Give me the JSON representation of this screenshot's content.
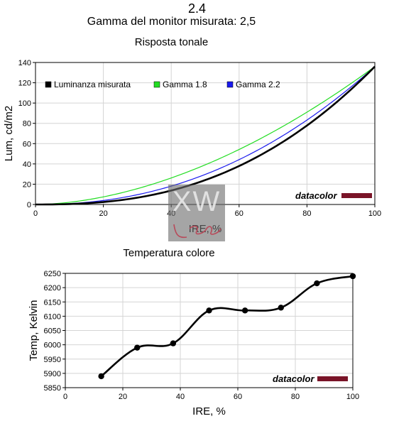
{
  "header": {
    "title": "2.4",
    "subtitle": "Gamma del monitor misurata: 2,5"
  },
  "watermark": {
    "logo_text": "XW"
  },
  "chart_data": [
    {
      "type": "line",
      "title": "Risposta tonale",
      "xlabel": "IRE, %",
      "ylabel": "Lum, cd/m2",
      "xlim": [
        0,
        100
      ],
      "ylim": [
        0,
        140
      ],
      "x_ticks": [
        0,
        20,
        40,
        60,
        80,
        100
      ],
      "y_ticks": [
        0,
        20,
        40,
        60,
        80,
        100,
        120,
        140
      ],
      "grid": true,
      "legend_position": "top",
      "max_luminance": 136,
      "series": [
        {
          "name": "Luminanza misurata",
          "color": "#000000",
          "gamma": 2.5,
          "x": [
            0,
            10,
            20,
            30,
            40,
            50,
            60,
            70,
            80,
            90,
            100
          ],
          "y": [
            0,
            0.4,
            2.4,
            6.7,
            13.8,
            24.0,
            37.9,
            55.7,
            77.9,
            104.5,
            136
          ]
        },
        {
          "name": "Gamma 1.8",
          "color": "#22dd22",
          "gamma": 1.8,
          "x": [
            0,
            10,
            20,
            30,
            40,
            50,
            60,
            70,
            80,
            90,
            100
          ],
          "y": [
            0,
            2.2,
            7.8,
            15.9,
            26.5,
            39.0,
            54.6,
            71.4,
            91.5,
            112.7,
            136
          ]
        },
        {
          "name": "Gamma 2.2",
          "color": "#1a1aee",
          "gamma": 2.2,
          "x": [
            0,
            10,
            20,
            30,
            40,
            50,
            60,
            70,
            80,
            90,
            100
          ],
          "y": [
            0,
            0.9,
            4.9,
            9.9,
            17.1,
            29.6,
            44.3,
            61.9,
            83.4,
            108.5,
            136
          ]
        }
      ],
      "brand": "datacolor",
      "brand_color": "#7a1428"
    },
    {
      "type": "line",
      "title": "Temperatura colore",
      "xlabel": "IRE, %",
      "ylabel": "Temp, Kelvin",
      "xlim": [
        0,
        100
      ],
      "ylim": [
        5850,
        6250
      ],
      "x_ticks": [
        0,
        20,
        40,
        60,
        80,
        100
      ],
      "y_ticks": [
        5850,
        5900,
        5950,
        6000,
        6050,
        6100,
        6150,
        6200,
        6250
      ],
      "grid": true,
      "series": [
        {
          "color": "#000000",
          "x": [
            12.5,
            25,
            37.5,
            50,
            62.5,
            75,
            87.5,
            100
          ],
          "y": [
            5890,
            5990,
            6005,
            6120,
            6120,
            6130,
            6215,
            6240
          ]
        }
      ],
      "brand": "datacolor",
      "brand_color": "#7a1428"
    }
  ]
}
